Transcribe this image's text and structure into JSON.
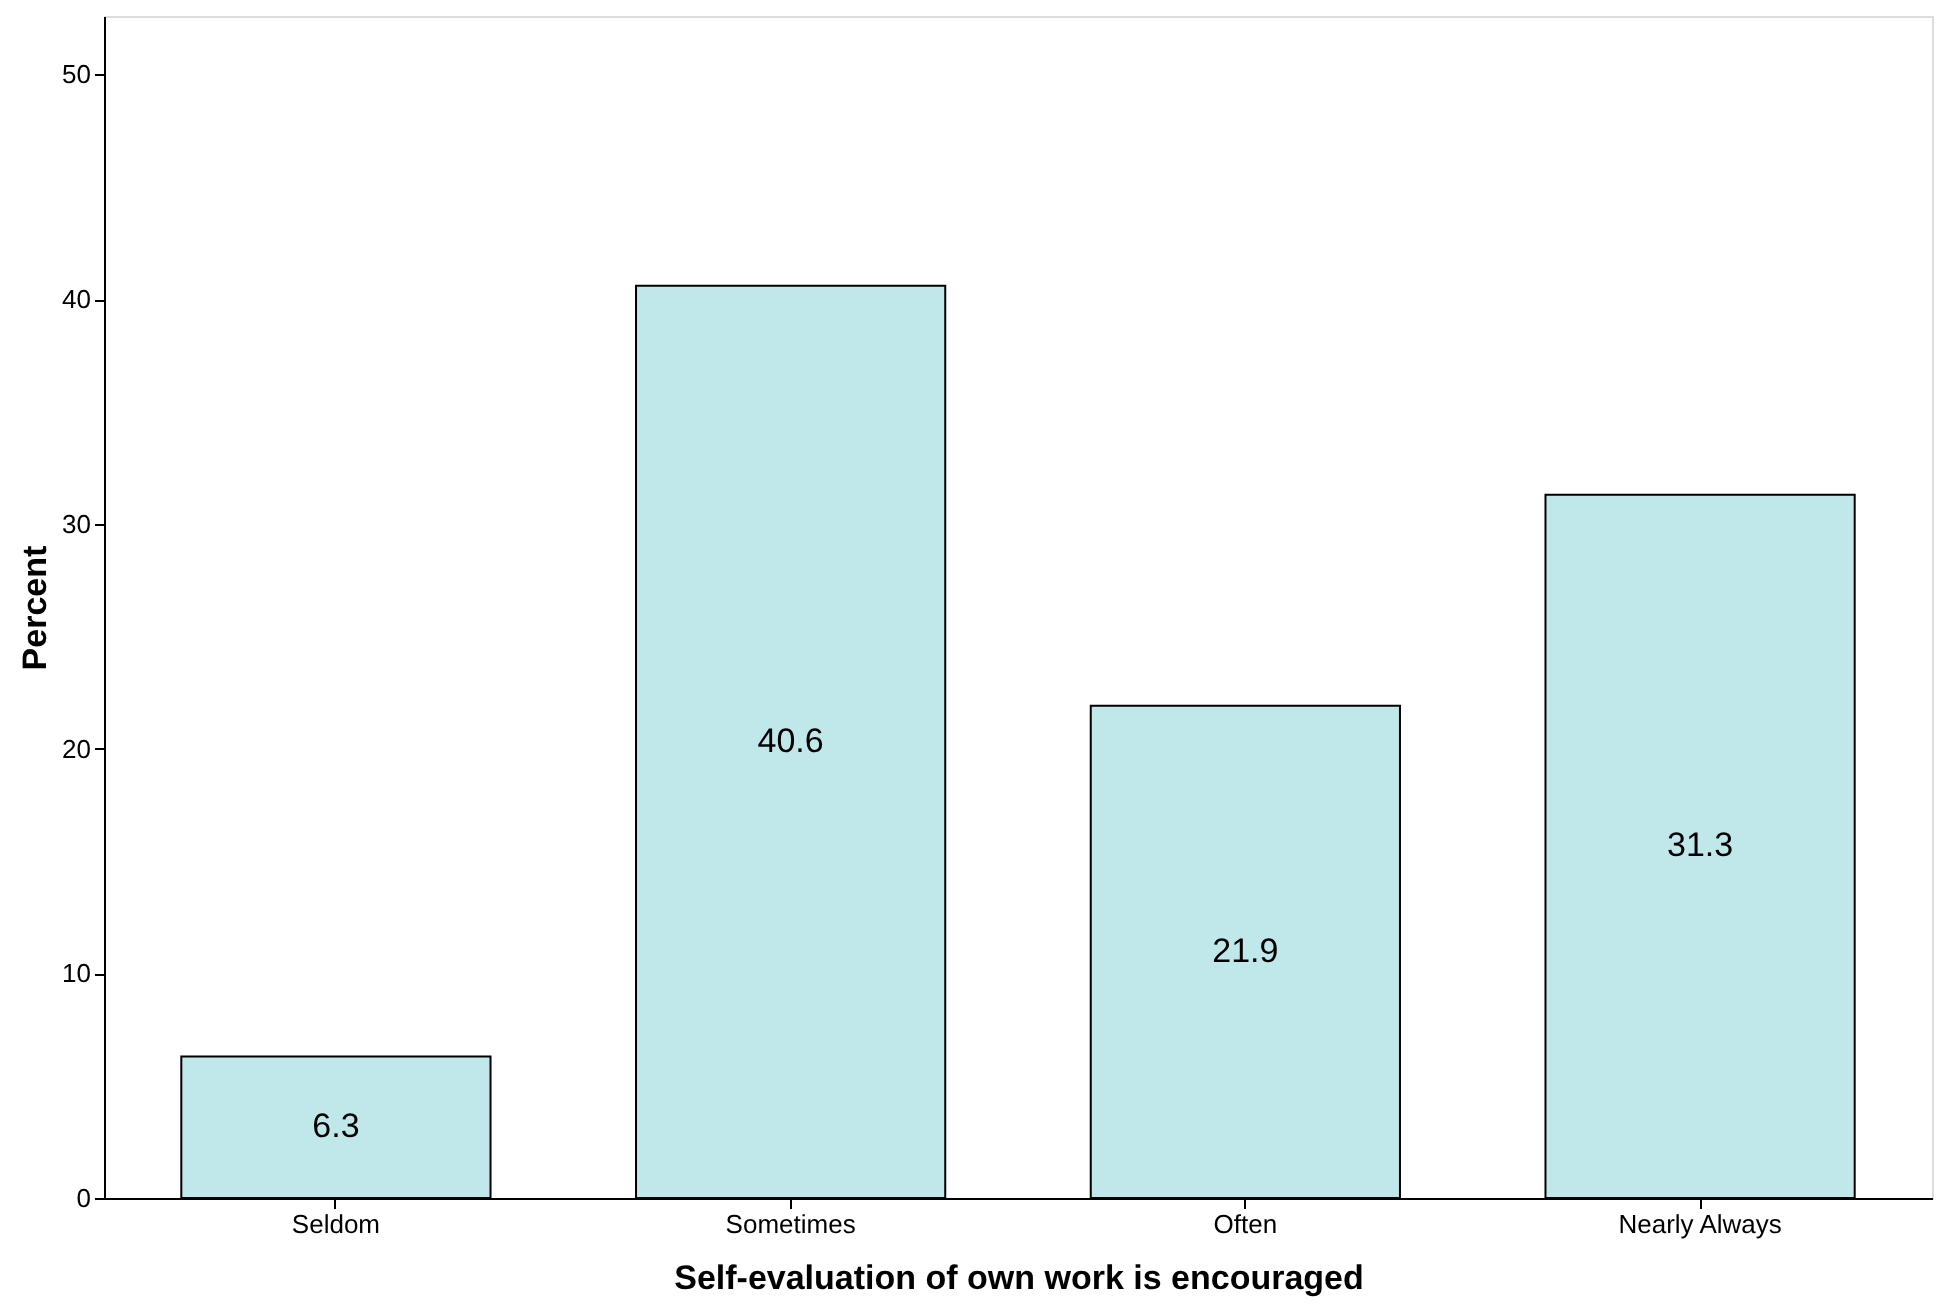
{
  "chart_data": {
    "type": "bar",
    "xlabel": "Self-evaluation of own work is encouraged",
    "ylabel": "Percent",
    "categories": [
      "Seldom",
      "Sometimes",
      "Often",
      "Nearly Always"
    ],
    "values": [
      6.3,
      40.6,
      21.9,
      31.3
    ],
    "color": "#c0e8ea",
    "ylim": [
      0,
      52.6
    ],
    "yticks": [
      0,
      10,
      20,
      30,
      40,
      50
    ],
    "grid": false,
    "data_labels": true
  }
}
